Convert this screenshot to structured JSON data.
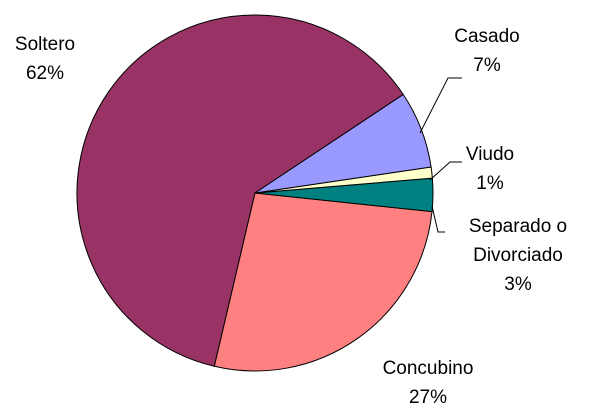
{
  "chart_data": {
    "type": "pie",
    "categories": [
      "Casado",
      "Viudo",
      "Separado o Divorciado",
      "Concubino",
      "Soltero"
    ],
    "values": [
      7,
      1,
      3,
      27,
      62
    ],
    "value_labels": [
      "7%",
      "1%",
      "3%",
      "27%",
      "62%"
    ],
    "colors": [
      "#9999ff",
      "#ffffcc",
      "#008080",
      "#ff8080",
      "#993366"
    ]
  }
}
